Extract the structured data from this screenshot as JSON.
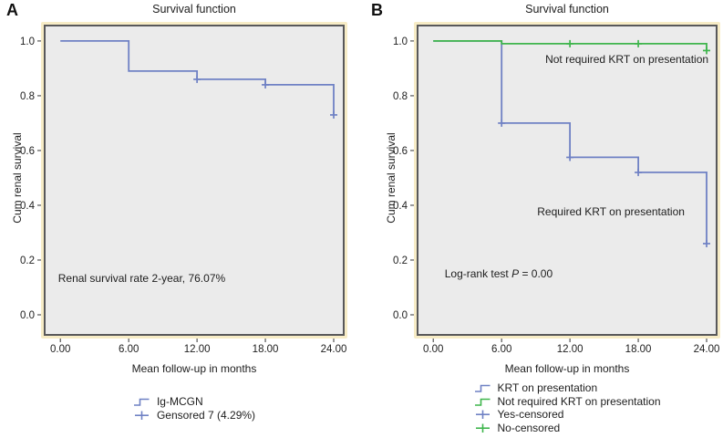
{
  "colors": {
    "blue": "#6f81c4",
    "green": "#3eb54c",
    "plot_bg": "#ebebeb",
    "frame": "#58585a",
    "frame_outer": "#f7ecc6",
    "tick": "#555555",
    "text": "#1d1d1d"
  },
  "chart_data": [
    {
      "type": "line",
      "step": true,
      "panel_label": "A",
      "title": "Survival function",
      "xlabel": "Mean follow-up in months",
      "ylabel": "Cum renal survival",
      "xtick_values": [
        0,
        6,
        12,
        18,
        24
      ],
      "xtick_labels": [
        "0.00",
        "6.00",
        "12.00",
        "18.00",
        "24.00"
      ],
      "ytick_values": [
        0.0,
        0.2,
        0.4,
        0.6,
        0.8,
        1.0
      ],
      "ytick_labels": [
        "0.0",
        "0.2",
        "0.4",
        "0.6",
        "0.8",
        "1.0"
      ],
      "xlim": [
        -1.3,
        24.8
      ],
      "ylim": [
        -0.07,
        1.053
      ],
      "grid": false,
      "legend_position": "bottom",
      "series": [
        {
          "name": "Ig-MCGN",
          "color_key": "blue",
          "points": [
            [
              0,
              1.0
            ],
            [
              6,
              1.0
            ],
            [
              6,
              0.89
            ],
            [
              12,
              0.89
            ],
            [
              12,
              0.86
            ],
            [
              18,
              0.86
            ],
            [
              18,
              0.84
            ],
            [
              24,
              0.84
            ],
            [
              24,
              0.73
            ]
          ],
          "censored": [
            [
              12,
              0.86
            ],
            [
              18,
              0.84
            ],
            [
              24,
              0.73
            ]
          ]
        }
      ],
      "annotations": [
        {
          "parts": [
            {
              "text": "Renal survival rate 2-year, 76.07%"
            }
          ],
          "x": -0.2,
          "y": 0.133,
          "align": "left"
        }
      ],
      "legend": [
        {
          "glyph": "step",
          "color_key": "blue",
          "label": "Ig-MCGN"
        },
        {
          "glyph": "censor",
          "color_key": "blue",
          "label": "Gensored 7 (4.29%)"
        }
      ]
    },
    {
      "type": "line",
      "step": true,
      "panel_label": "B",
      "title": "Survival function",
      "xlabel": "Mean follow-up in months",
      "ylabel": "Cum renal survival",
      "xtick_values": [
        0,
        6,
        12,
        18,
        24
      ],
      "xtick_labels": [
        "0.00",
        "6.00",
        "12.00",
        "18.00",
        "24.00"
      ],
      "ytick_values": [
        0.0,
        0.2,
        0.4,
        0.6,
        0.8,
        1.0
      ],
      "ytick_labels": [
        "0.0",
        "0.2",
        "0.4",
        "0.6",
        "0.8",
        "1.0"
      ],
      "xlim": [
        -1.3,
        24.8
      ],
      "ylim": [
        -0.07,
        1.053
      ],
      "grid": false,
      "legend_position": "bottom",
      "series": [
        {
          "name": "KRT on presentation",
          "color_key": "blue",
          "points": [
            [
              0,
              1.0
            ],
            [
              6,
              1.0
            ],
            [
              6,
              0.7
            ],
            [
              12,
              0.7
            ],
            [
              12,
              0.575
            ],
            [
              18,
              0.575
            ],
            [
              18,
              0.52
            ],
            [
              24,
              0.52
            ],
            [
              24,
              0.26
            ]
          ],
          "censored": [
            [
              6,
              0.7
            ],
            [
              12,
              0.575
            ],
            [
              18,
              0.52
            ],
            [
              24,
              0.26
            ]
          ]
        },
        {
          "name": "Not required KRT on presentation",
          "color_key": "green",
          "points": [
            [
              0,
              1.0
            ],
            [
              6,
              1.0
            ],
            [
              6,
              0.99
            ],
            [
              24,
              0.99
            ],
            [
              24,
              0.965
            ]
          ],
          "censored": [
            [
              12,
              0.99
            ],
            [
              18,
              0.99
            ],
            [
              24,
              0.965
            ]
          ]
        }
      ],
      "annotations": [
        {
          "parts": [
            {
              "text": "Not required KRT on presentation"
            }
          ],
          "x": 17.0,
          "y": 0.933,
          "align": "center"
        },
        {
          "parts": [
            {
              "text": "Required KRT on presentation"
            }
          ],
          "x": 15.6,
          "y": 0.377,
          "align": "center"
        },
        {
          "parts": [
            {
              "text": "Log-rank test "
            },
            {
              "text": "P",
              "italic": true
            },
            {
              "text": " = 0.00"
            }
          ],
          "x": 1.0,
          "y": 0.15,
          "align": "left"
        }
      ],
      "legend": [
        {
          "glyph": "step",
          "color_key": "blue",
          "label": "KRT on presentation"
        },
        {
          "glyph": "step",
          "color_key": "green",
          "label": "Not required KRT on presentation"
        },
        {
          "glyph": "censor",
          "color_key": "blue",
          "label": "Yes-censored"
        },
        {
          "glyph": "censor",
          "color_key": "green",
          "label": "No-censored"
        }
      ]
    }
  ]
}
